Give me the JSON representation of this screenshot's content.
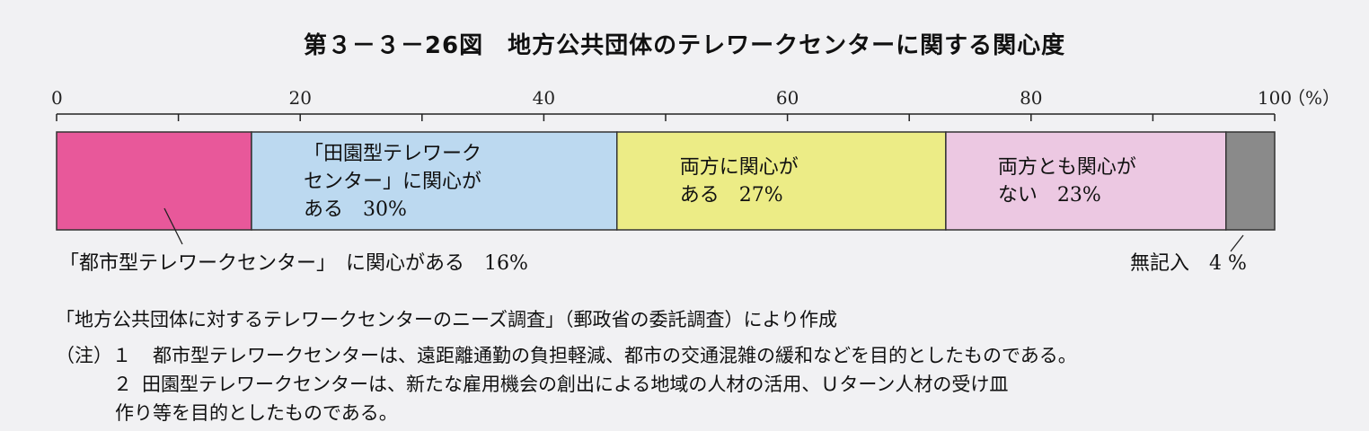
{
  "title": "第３－３－26図　地方公共団体のテレワークセンターに関する関心度",
  "chart_data": {
    "type": "bar",
    "orientation": "horizontal-stacked-100",
    "xlim": [
      0,
      100
    ],
    "ticks": [
      0,
      20,
      40,
      60,
      80,
      100
    ],
    "unit": "（%）",
    "series": [
      {
        "values": [
          16
        ],
        "label_lines": [
          "「都市型テレワークセンター」　に関心がある　16%"
        ],
        "color": "#e8589a"
      },
      {
        "values": [
          30
        ],
        "label_lines": [
          "「田園型テレワーク",
          "センター」に関心が",
          "ある　30%"
        ],
        "color": "#bcd9f0"
      },
      {
        "values": [
          27
        ],
        "label_lines": [
          "両方に関心が",
          "ある　27%"
        ],
        "color": "#ecec86"
      },
      {
        "values": [
          23
        ],
        "label_lines": [
          "両方とも関心が",
          "ない　23%"
        ],
        "color": "#ecc8e2"
      },
      {
        "values": [
          4
        ],
        "label_lines": [
          "無記入　4 %"
        ],
        "color": "#8a8a8a"
      }
    ]
  },
  "source": "「地方公共団体に対するテレワークセンターのニーズ調査」（郵政省の委託調査）により作成",
  "notes": {
    "prefix": "（注）１",
    "line1": "都市型テレワークセンターは、遠距離通勤の負担軽減、都市の交通混雑の緩和などを目的としたものである。",
    "num2": "２",
    "line2": "田園型テレワークセンターは、新たな雇用機会の創出による地域の人材の活用、Ｕターン人材の受け皿",
    "line3": "作り等を目的としたものである。"
  }
}
